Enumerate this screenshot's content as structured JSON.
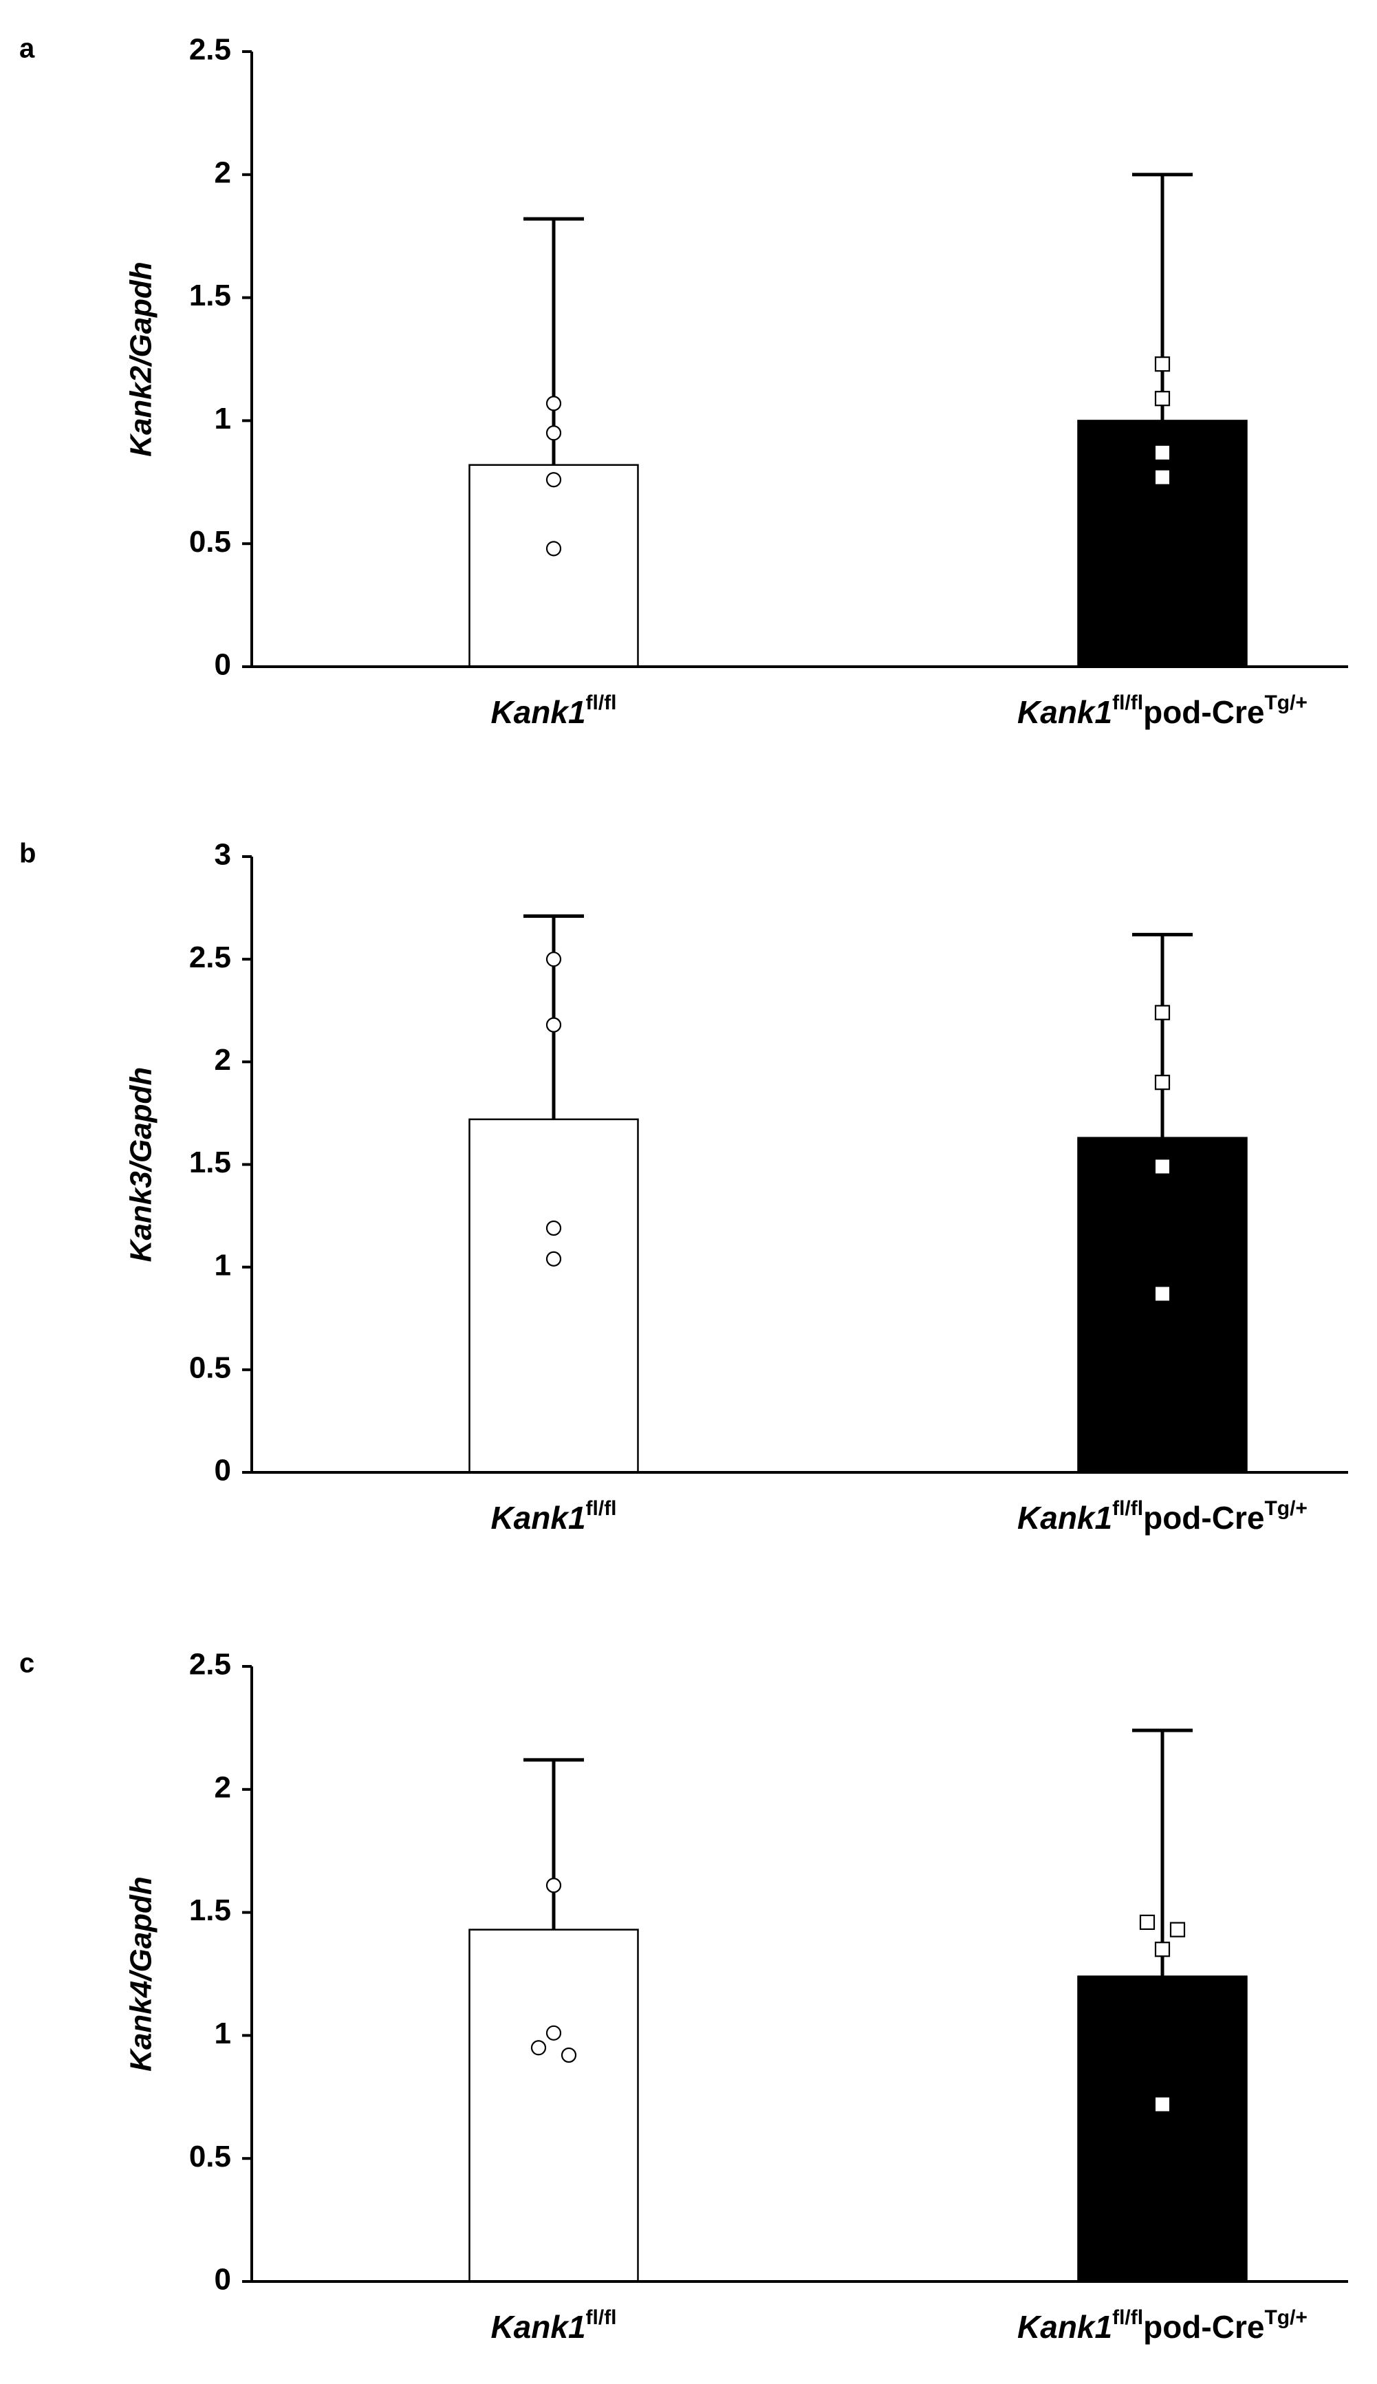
{
  "colors": {
    "control_bar": "#ffffff",
    "knockout_bar": "#000000",
    "axis": "#000000"
  },
  "chart_data": [
    {
      "type": "bar",
      "panel": "a",
      "ylabel": "Kank2/Gapdh",
      "ylim": [
        0,
        2.5
      ],
      "yticks": [
        {
          "value": 0,
          "label": "0"
        },
        {
          "value": 0.5,
          "label": "0.5"
        },
        {
          "value": 1,
          "label": "1"
        },
        {
          "value": 1.5,
          "label": "1.5"
        },
        {
          "value": 2,
          "label": "2"
        },
        {
          "value": 2.5,
          "label": "2.5"
        }
      ],
      "categories": [
        {
          "base": "Kank1",
          "sup1": "fl/fl",
          "rest": "",
          "sup2": ""
        },
        {
          "base": "Kank1",
          "sup1": "fl/fl",
          "rest": "pod-Cre",
          "sup2": "Tg/+"
        }
      ],
      "values": [
        0.82,
        1.0
      ],
      "error_upper": [
        1.82,
        2.0
      ],
      "points": [
        [
          {
            "y": 1.07,
            "dx": 0,
            "marker": "circle"
          },
          {
            "y": 0.95,
            "dx": 0,
            "marker": "circle"
          },
          {
            "y": 0.76,
            "dx": 0,
            "marker": "circle"
          },
          {
            "y": 0.48,
            "dx": 0,
            "marker": "circle"
          }
        ],
        [
          {
            "y": 1.23,
            "dx": 0,
            "marker": "square-open"
          },
          {
            "y": 1.09,
            "dx": 0,
            "marker": "square-open"
          },
          {
            "y": 0.87,
            "dx": 0,
            "marker": "square-filled"
          },
          {
            "y": 0.77,
            "dx": 0,
            "marker": "square-filled"
          }
        ]
      ]
    },
    {
      "type": "bar",
      "panel": "b",
      "ylabel": "Kank3/Gapdh",
      "ylim": [
        0,
        3
      ],
      "yticks": [
        {
          "value": 0,
          "label": "0"
        },
        {
          "value": 0.5,
          "label": "0.5"
        },
        {
          "value": 1,
          "label": "1"
        },
        {
          "value": 1.5,
          "label": "1.5"
        },
        {
          "value": 2,
          "label": "2"
        },
        {
          "value": 2.5,
          "label": "2.5"
        },
        {
          "value": 3,
          "label": "3"
        }
      ],
      "categories": [
        {
          "base": "Kank1",
          "sup1": "fl/fl",
          "rest": "",
          "sup2": ""
        },
        {
          "base": "Kank1",
          "sup1": "fl/fl",
          "rest": "pod-Cre",
          "sup2": "Tg/+"
        }
      ],
      "values": [
        1.72,
        1.63
      ],
      "error_upper": [
        2.71,
        2.62
      ],
      "points": [
        [
          {
            "y": 2.5,
            "dx": 0,
            "marker": "circle"
          },
          {
            "y": 2.18,
            "dx": 0,
            "marker": "circle"
          },
          {
            "y": 1.19,
            "dx": 0,
            "marker": "circle"
          },
          {
            "y": 1.04,
            "dx": 0,
            "marker": "circle"
          }
        ],
        [
          {
            "y": 2.24,
            "dx": 0,
            "marker": "square-open"
          },
          {
            "y": 1.9,
            "dx": 0,
            "marker": "square-open"
          },
          {
            "y": 1.49,
            "dx": 0,
            "marker": "square-filled"
          },
          {
            "y": 0.87,
            "dx": 0,
            "marker": "square-filled"
          }
        ]
      ]
    },
    {
      "type": "bar",
      "panel": "c",
      "ylabel": "Kank4/Gapdh",
      "ylim": [
        0,
        2.5
      ],
      "yticks": [
        {
          "value": 0,
          "label": "0"
        },
        {
          "value": 0.5,
          "label": "0.5"
        },
        {
          "value": 1,
          "label": "1"
        },
        {
          "value": 1.5,
          "label": "1.5"
        },
        {
          "value": 2,
          "label": "2"
        },
        {
          "value": 2.5,
          "label": "2.5"
        }
      ],
      "categories": [
        {
          "base": "Kank1",
          "sup1": "fl/fl",
          "rest": "",
          "sup2": ""
        },
        {
          "base": "Kank1",
          "sup1": "fl/fl",
          "rest": "pod-Cre",
          "sup2": "Tg/+"
        }
      ],
      "values": [
        1.43,
        1.24
      ],
      "error_upper": [
        2.12,
        2.24
      ],
      "points": [
        [
          {
            "y": 1.61,
            "dx": 0,
            "marker": "circle"
          },
          {
            "y": 1.01,
            "dx": 0,
            "marker": "circle"
          },
          {
            "y": 0.95,
            "dx": -1,
            "marker": "circle"
          },
          {
            "y": 0.92,
            "dx": 1,
            "marker": "circle"
          }
        ],
        [
          {
            "y": 1.46,
            "dx": -1,
            "marker": "square-open"
          },
          {
            "y": 1.43,
            "dx": 1,
            "marker": "square-open"
          },
          {
            "y": 1.35,
            "dx": 0,
            "marker": "square-open"
          },
          {
            "y": 0.72,
            "dx": 0,
            "marker": "square-filled"
          }
        ]
      ]
    }
  ]
}
